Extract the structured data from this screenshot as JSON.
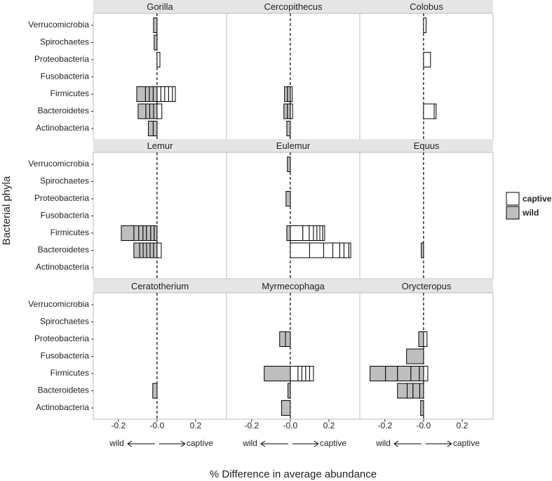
{
  "chart_data": {
    "type": "bar",
    "orientation": "horizontal",
    "x_label": "% Difference in average abundance",
    "y_label": "Bacterial phyla",
    "direction_labels": [
      "wild",
      "captive"
    ],
    "categories": [
      "Verrucomicrobia",
      "Spirochaetes",
      "Proteobacteria",
      "Fusobacteria",
      "Firmicutes",
      "Bacteroidetes",
      "Actinobacteria"
    ],
    "xlim": [
      -0.33,
      0.36
    ],
    "xticks": [
      -0.2,
      {
        "value": 0,
        "label": "-0.0"
      },
      0.2
    ],
    "zero_line": "dashed",
    "series": [
      {
        "name": "captive",
        "color": "#ffffff"
      },
      {
        "name": "wild",
        "color": "#bebebe"
      }
    ],
    "facets": [
      {
        "title": "Gorilla",
        "values": [
          [
            [],
            [],
            [
              0.015
            ],
            [],
            [
              0.02,
              0.02,
              0.02,
              0.02,
              0.015
            ],
            [
              0.025
            ],
            []
          ],
          [
            [
              -0.018
            ],
            [
              -0.015
            ],
            [],
            [],
            [
              -0.02,
              -0.02,
              -0.02,
              -0.045
            ],
            [
              -0.018,
              -0.02,
              -0.02,
              -0.04
            ],
            [
              -0.02,
              -0.025
            ]
          ]
        ]
      },
      {
        "title": "Cercopithecus",
        "values": [
          [
            [],
            [],
            [],
            [],
            [
              0.01
            ],
            [
              0.012
            ],
            []
          ],
          [
            [],
            [],
            [],
            [],
            [
              -0.015,
              -0.015
            ],
            [
              -0.015,
              -0.018
            ],
            [
              -0.018
            ]
          ]
        ]
      },
      {
        "title": "Colobus",
        "values": [
          [
            [
              0.013
            ],
            [],
            [
              0.036
            ],
            [],
            [],
            [
              0.055,
              0.01
            ],
            []
          ],
          [
            [],
            [],
            [],
            [],
            [],
            [],
            []
          ]
        ]
      },
      {
        "title": "Lemur",
        "values": [
          [
            [],
            [],
            [],
            [],
            [],
            [
              0.022
            ],
            []
          ],
          [
            [],
            [],
            [],
            [],
            [
              -0.015,
              -0.018,
              -0.022,
              -0.018,
              -0.022,
              -0.025,
              -0.065
            ],
            [
              -0.018,
              -0.018,
              -0.018,
              -0.018,
              -0.018,
              -0.03
            ],
            []
          ]
        ]
      },
      {
        "title": "Eulemur",
        "values": [
          [
            [],
            [],
            [],
            [],
            [
              0.065,
              0.033,
              0.022,
              0.018,
              0.015,
              0.015,
              0.01
            ],
            [
              0.1,
              0.073,
              0.047,
              0.036,
              0.022,
              0.025,
              0.01
            ],
            []
          ],
          [
            [
              -0.015
            ],
            [],
            [
              -0.022
            ],
            [],
            [
              -0.018
            ],
            [],
            []
          ]
        ]
      },
      {
        "title": "Equus",
        "values": [
          [
            [],
            [],
            [],
            [],
            [],
            [],
            []
          ],
          [
            [],
            [],
            [],
            [],
            [],
            [
              -0.012
            ],
            []
          ]
        ]
      },
      {
        "title": "Ceratotherium",
        "values": [
          [
            [],
            [],
            [],
            [],
            [],
            [],
            []
          ],
          [
            [],
            [],
            [],
            [],
            [],
            [
              -0.022
            ],
            []
          ]
        ]
      },
      {
        "title": "Myrmecophaga",
        "values": [
          [
            [],
            [],
            [],
            [],
            [
              0.04,
              0.02,
              0.02,
              0.02,
              0.02
            ],
            [],
            []
          ],
          [
            [],
            [],
            [
              -0.025,
              -0.03
            ],
            [],
            [
              -0.135
            ],
            [
              -0.012
            ],
            [
              -0.045
            ]
          ]
        ]
      },
      {
        "title": "Orycteropus",
        "values": [
          [
            [],
            [],
            [
              0.018
            ],
            [],
            [
              0.022
            ],
            [],
            []
          ],
          [
            [],
            [],
            [
              -0.025
            ],
            [
              -0.088
            ],
            [
              -0.022,
              -0.044,
              -0.069,
              -0.062,
              -0.08
            ],
            [
              -0.02,
              -0.035,
              -0.03,
              -0.05
            ],
            [
              -0.015
            ]
          ]
        ]
      }
    ]
  }
}
